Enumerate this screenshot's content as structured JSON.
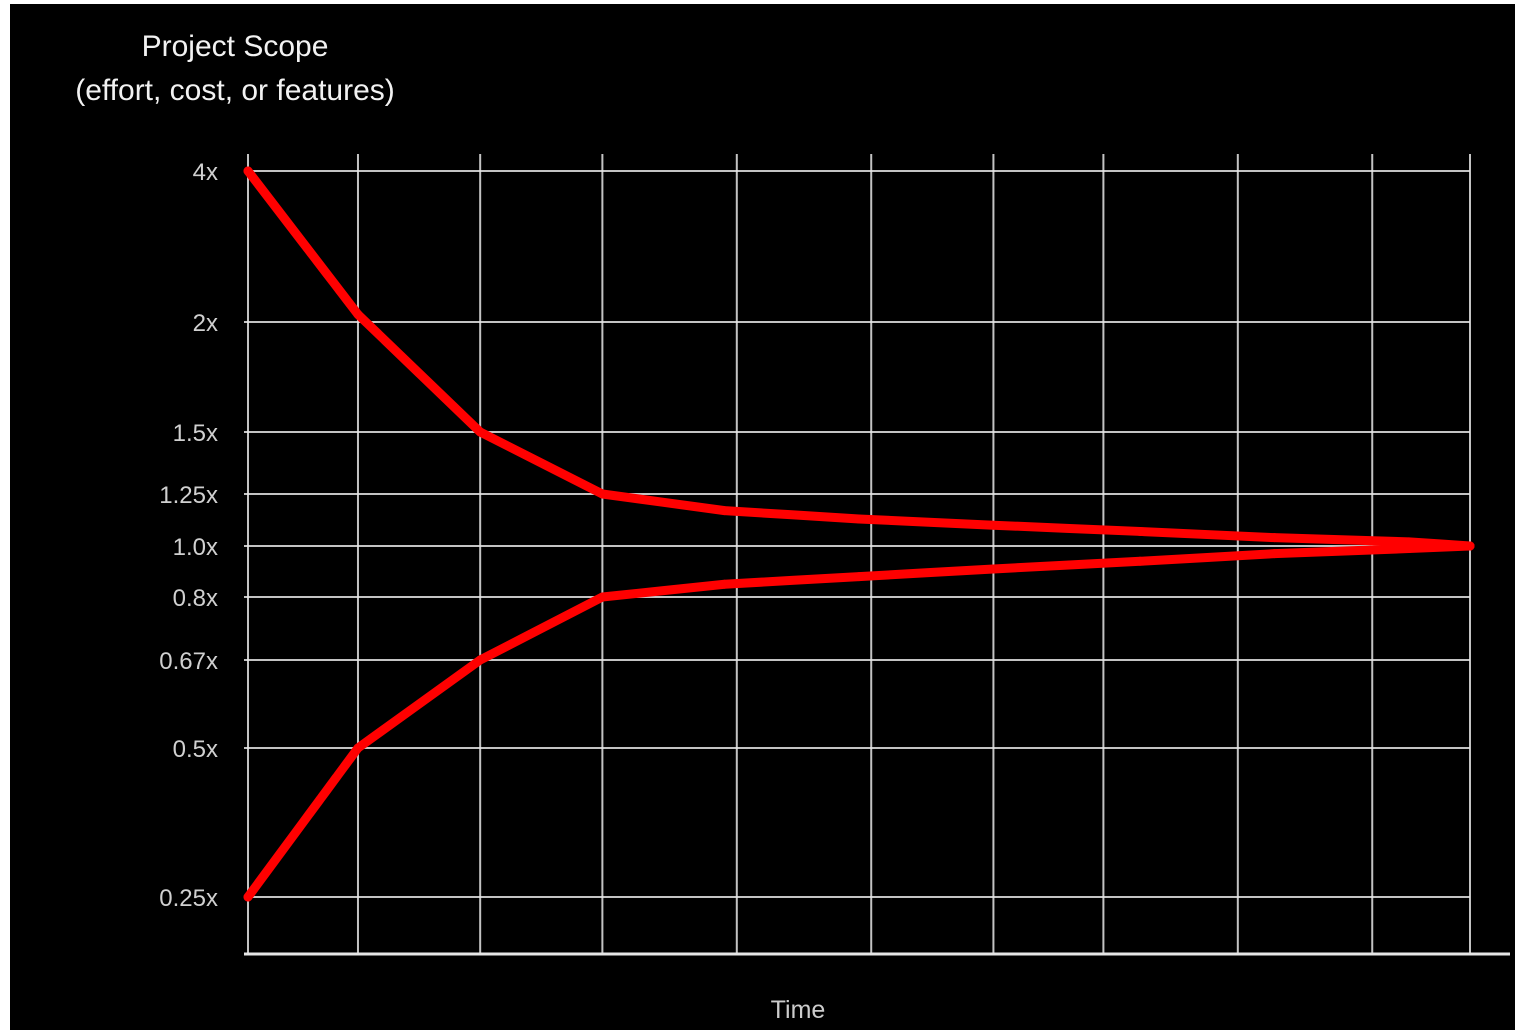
{
  "chart_data": {
    "type": "line",
    "title": "",
    "ylabel_line1": "Project Scope",
    "ylabel_line2": "(effort, cost, or features)",
    "xlabel": "Time",
    "yticks": [
      {
        "value": 4,
        "label": "4x"
      },
      {
        "value": 2,
        "label": "2x"
      },
      {
        "value": 1.5,
        "label": "1.5x"
      },
      {
        "value": 1.25,
        "label": "1.25x"
      },
      {
        "value": 1.0,
        "label": "1.0x"
      },
      {
        "value": 0.8,
        "label": "0.8x"
      },
      {
        "value": 0.67,
        "label": "0.67x"
      },
      {
        "value": 0.5,
        "label": "0.5x"
      },
      {
        "value": 0.25,
        "label": "0.25x"
      }
    ],
    "x": [
      0,
      0.09,
      0.19,
      0.29,
      0.39,
      0.5,
      0.61,
      0.73,
      0.84,
      0.95,
      1.0
    ],
    "xgrid": [
      0,
      0.09,
      0.19,
      0.29,
      0.4,
      0.51,
      0.61,
      0.7,
      0.81,
      0.92,
      1.0
    ],
    "series": [
      {
        "values": [
          4.0,
          2.1,
          1.5,
          1.25,
          1.17,
          1.13,
          1.1,
          1.07,
          1.04,
          1.02,
          1.0
        ]
      },
      {
        "values": [
          0.25,
          0.5,
          0.67,
          0.8,
          0.85,
          0.88,
          0.91,
          0.94,
          0.97,
          0.99,
          1.0
        ]
      }
    ],
    "ylim": [
      0.25,
      4
    ],
    "xlim": [
      0,
      1
    ],
    "grid": true,
    "line_color": "#ff0000",
    "grid_color": "#e6e6e6",
    "background": "#000000"
  }
}
